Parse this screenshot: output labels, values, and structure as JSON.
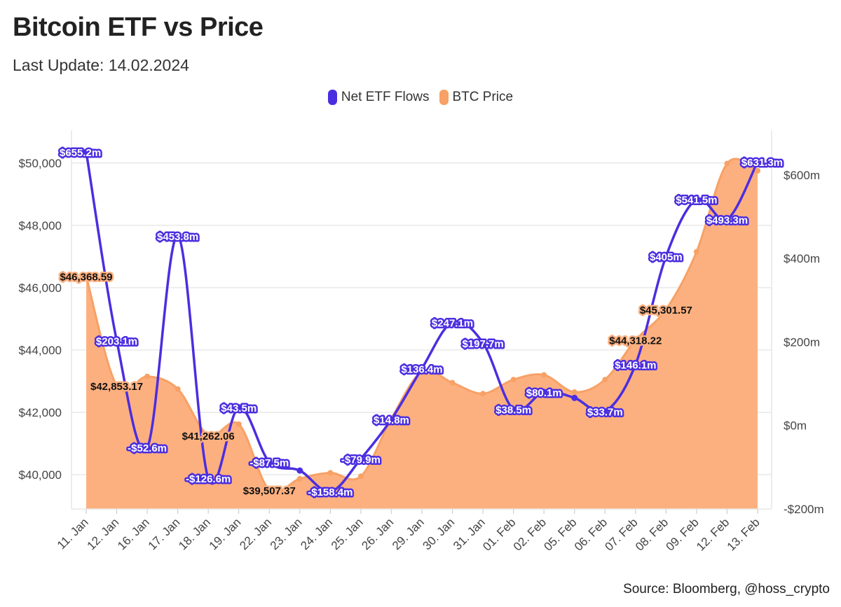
{
  "title": "Bitcoin ETF vs Price",
  "subtitle": "Last Update: 14.02.2024",
  "source": "Source: Bloomberg, @hoss_crypto",
  "colors": {
    "flows": "#4b2ee0",
    "price": "#f7a166",
    "priceFill": "#fdb07f",
    "grid": "#e9e9e9"
  },
  "chart_data": {
    "type": "line",
    "categories": [
      "11. Jan",
      "12. Jan",
      "16. Jan",
      "17. Jan",
      "18. Jan",
      "19. Jan",
      "22. Jan",
      "23. Jan",
      "24. Jan",
      "25. Jan",
      "26. Jan",
      "29. Jan",
      "30. Jan",
      "31. Jan",
      "01. Feb",
      "02. Feb",
      "05. Feb",
      "06. Feb",
      "07. Feb",
      "08. Feb",
      "09. Feb",
      "12. Feb",
      "13. Feb"
    ],
    "series": [
      {
        "name": "BTC Price",
        "axis": "left",
        "kind": "area",
        "values": [
          46368.59,
          42853.17,
          43150,
          42750,
          41262.06,
          41620,
          39507.37,
          39870,
          40060,
          39950,
          41800,
          43300,
          42950,
          42600,
          43050,
          43200,
          42650,
          43050,
          44318.22,
          45301.57,
          47150,
          49980,
          49750
        ],
        "labels": [
          "$46,368.59",
          "$42,853.17",
          "",
          "",
          "$41,262.06",
          "",
          "$39,507.37",
          "",
          "",
          "",
          "",
          "",
          "",
          "",
          "",
          "",
          "",
          "",
          "$44,318.22",
          "$45,301.57",
          "",
          "",
          ""
        ]
      },
      {
        "name": "Net ETF Flows",
        "axis": "right",
        "kind": "line",
        "values": [
          655.2,
          203.1,
          -52.6,
          453.8,
          -126.6,
          43.5,
          -87.5,
          -108,
          -158.4,
          -79.9,
          14.8,
          136.4,
          247.1,
          197.7,
          38.5,
          80.1,
          66,
          33.7,
          146.1,
          405,
          541.5,
          493.3,
          631.3
        ],
        "labels": [
          "$655.2m",
          "$203.1m",
          "-$52.6m",
          "$453.8m",
          "-$126.6m",
          "$43.5m",
          "-$87.5m",
          "",
          "-$158.4m",
          "-$79.9m",
          "$14.8m",
          "$136.4m",
          "$247.1m",
          "$197.7m",
          "$38.5m",
          "$80.1m",
          "",
          "$33.7m",
          "$146.1m",
          "$405m",
          "$541.5m",
          "$493.3m",
          "$631.3m"
        ]
      }
    ],
    "y_left": {
      "min": 38900,
      "max": 51050,
      "ticks": [
        40000,
        42000,
        44000,
        46000,
        48000,
        50000
      ],
      "tick_labels": [
        "$40,000",
        "$42,000",
        "$44,000",
        "$46,000",
        "$48,000",
        "$50,000"
      ]
    },
    "y_right": {
      "min": -200,
      "max": 707,
      "ticks": [
        -200,
        0,
        200,
        400,
        600
      ],
      "tick_labels": [
        "-$200m",
        "$0m",
        "$200m",
        "$400m",
        "$600m"
      ]
    },
    "legend": [
      "Net ETF Flows",
      "BTC Price"
    ],
    "legend_position": "top-center",
    "grid": true
  }
}
